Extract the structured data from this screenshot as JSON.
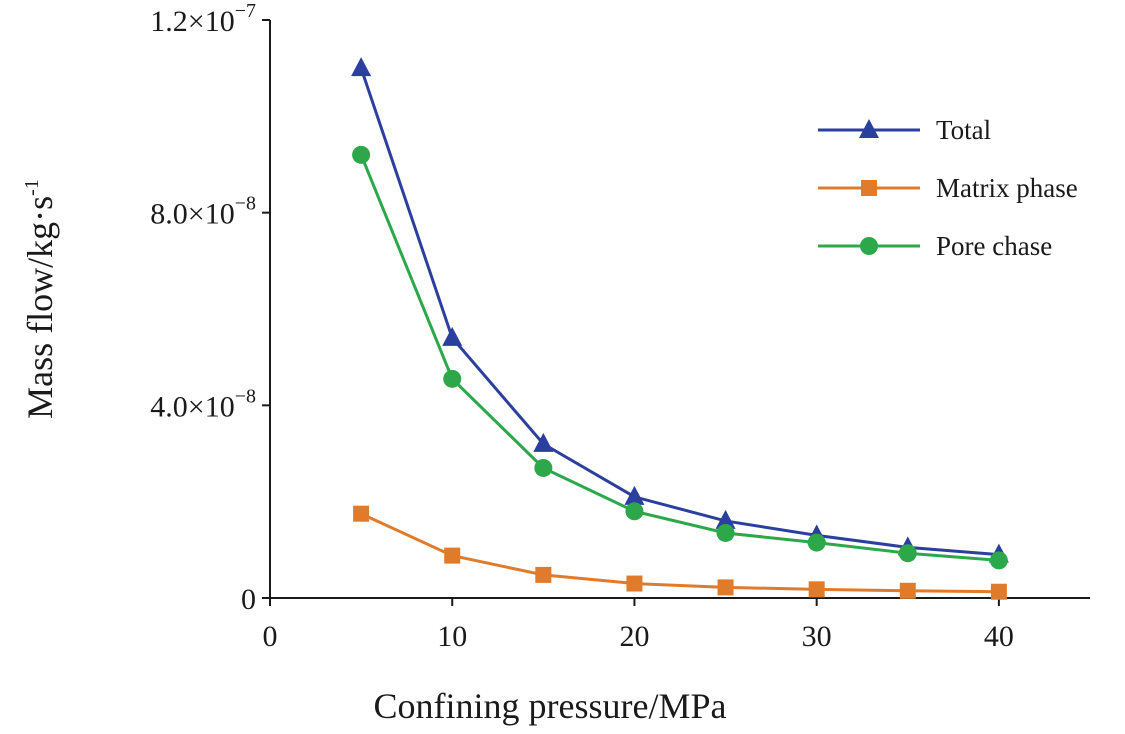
{
  "chart_data": {
    "type": "line",
    "title": "",
    "xlabel": "Confining pressure/MPa",
    "ylabel": {
      "base": "Mass flow/kg·s",
      "superscript": "-1"
    },
    "xlim": [
      0,
      45
    ],
    "ylim": [
      0,
      1.2e-07
    ],
    "x_ticks": [
      0,
      10,
      20,
      30,
      40
    ],
    "y_ticks": [
      {
        "value": 0,
        "mantissa": "0",
        "exponent": ""
      },
      {
        "value": 4e-08,
        "mantissa": "4.0×10",
        "exponent": "−8"
      },
      {
        "value": 8e-08,
        "mantissa": "8.0×10",
        "exponent": "−8"
      },
      {
        "value": 1.2e-07,
        "mantissa": "1.2×10",
        "exponent": "−7"
      }
    ],
    "grid": false,
    "legend_position": "top-right",
    "x": [
      5,
      10,
      15,
      20,
      25,
      30,
      35,
      40
    ],
    "series": [
      {
        "name": "Total",
        "color": "#2b3f9e",
        "marker": "triangle",
        "values": [
          1.1e-07,
          5.4e-08,
          3.2e-08,
          2.1e-08,
          1.6e-08,
          1.3e-08,
          1.05e-08,
          9e-09
        ]
      },
      {
        "name": "Matrix phase",
        "color": "#e07b2c",
        "marker": "square",
        "values": [
          1.75e-08,
          8.8e-09,
          4.8e-09,
          3e-09,
          2.2e-09,
          1.8e-09,
          1.5e-09,
          1.3e-09
        ]
      },
      {
        "name": "Pore chase",
        "color": "#2ca84a",
        "marker": "circle",
        "values": [
          9.2e-08,
          4.55e-08,
          2.7e-08,
          1.8e-08,
          1.35e-08,
          1.15e-08,
          9.3e-09,
          7.8e-09
        ]
      }
    ]
  }
}
